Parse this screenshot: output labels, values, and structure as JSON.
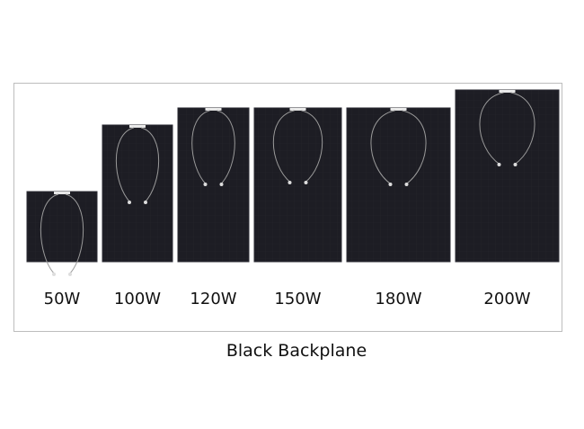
{
  "panels": [
    {
      "label": "50W"
    },
    {
      "label": "100W"
    },
    {
      "label": "120W"
    },
    {
      "label": "150W"
    },
    {
      "label": "180W"
    },
    {
      "label": "200W"
    }
  ],
  "caption": "Black Backplane"
}
